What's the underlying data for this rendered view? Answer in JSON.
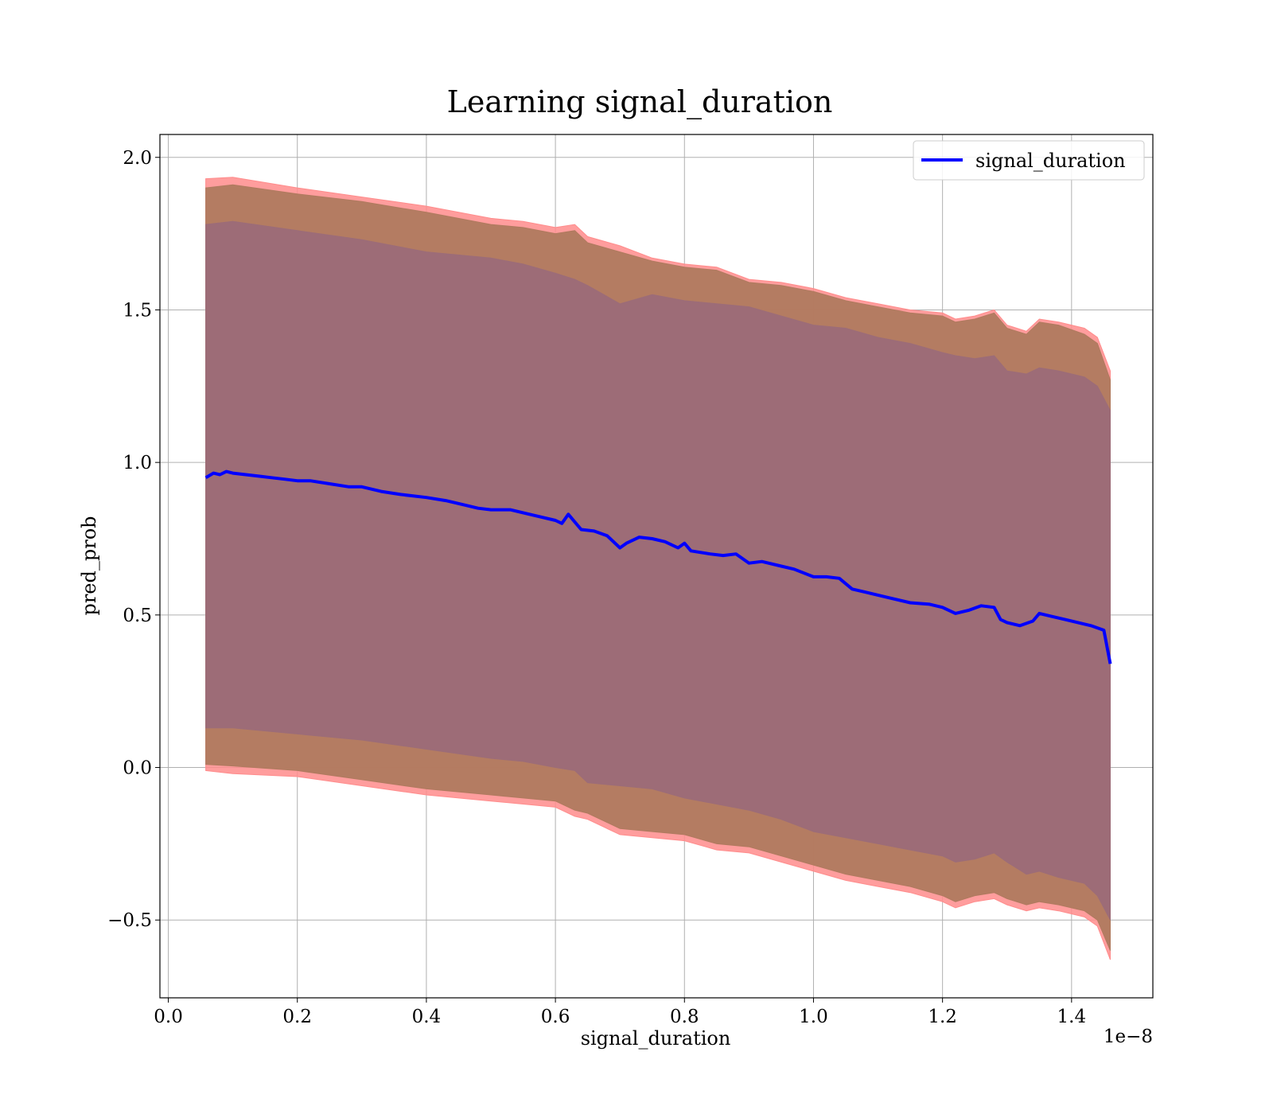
{
  "chart_data": {
    "type": "line",
    "title": "Learning signal_duration",
    "xlabel": "signal_duration",
    "ylabel": "pred_prob",
    "x_offset_label": "1e−8",
    "xlim": [
      -0.013,
      1.526
    ],
    "ylim": [
      -0.755,
      2.075
    ],
    "xticks": [
      0.0,
      0.2,
      0.4,
      0.6,
      0.8,
      1.0,
      1.2,
      1.4
    ],
    "xtick_labels": [
      "0.0",
      "0.2",
      "0.4",
      "0.6",
      "0.8",
      "1.0",
      "1.2",
      "1.4"
    ],
    "yticks": [
      -0.5,
      0.0,
      0.5,
      1.0,
      1.5,
      2.0
    ],
    "ytick_labels": [
      "−0.5",
      "0.0",
      "0.5",
      "1.0",
      "1.5",
      "2.0"
    ],
    "grid": true,
    "legend_position": "top-right",
    "colors": {
      "line": "#0000ff",
      "outer_band": "#ff8c8c",
      "middle_band": "#b07a5f",
      "inner_band": "#9c6c78"
    },
    "series": [
      {
        "name": "signal_duration",
        "kind": "line",
        "x": [
          0.058,
          0.07,
          0.08,
          0.09,
          0.1,
          0.12,
          0.14,
          0.16,
          0.18,
          0.2,
          0.22,
          0.25,
          0.28,
          0.3,
          0.33,
          0.36,
          0.4,
          0.43,
          0.46,
          0.48,
          0.5,
          0.53,
          0.55,
          0.58,
          0.6,
          0.61,
          0.62,
          0.63,
          0.64,
          0.66,
          0.68,
          0.7,
          0.71,
          0.73,
          0.75,
          0.77,
          0.79,
          0.8,
          0.81,
          0.84,
          0.86,
          0.88,
          0.9,
          0.92,
          0.95,
          0.97,
          1.0,
          1.02,
          1.04,
          1.06,
          1.08,
          1.1,
          1.12,
          1.15,
          1.18,
          1.2,
          1.22,
          1.24,
          1.26,
          1.28,
          1.29,
          1.3,
          1.32,
          1.34,
          1.35,
          1.37,
          1.39,
          1.41,
          1.43,
          1.45,
          1.46
        ],
        "y": [
          0.95,
          0.965,
          0.96,
          0.97,
          0.965,
          0.96,
          0.955,
          0.95,
          0.945,
          0.94,
          0.94,
          0.93,
          0.92,
          0.92,
          0.905,
          0.895,
          0.885,
          0.875,
          0.86,
          0.85,
          0.845,
          0.845,
          0.835,
          0.82,
          0.81,
          0.8,
          0.83,
          0.805,
          0.78,
          0.775,
          0.76,
          0.72,
          0.735,
          0.755,
          0.75,
          0.74,
          0.72,
          0.735,
          0.71,
          0.7,
          0.695,
          0.7,
          0.67,
          0.675,
          0.66,
          0.65,
          0.625,
          0.625,
          0.62,
          0.585,
          0.575,
          0.565,
          0.555,
          0.54,
          0.535,
          0.525,
          0.505,
          0.515,
          0.53,
          0.525,
          0.485,
          0.475,
          0.465,
          0.48,
          0.505,
          0.495,
          0.485,
          0.475,
          0.465,
          0.45,
          0.34
        ]
      },
      {
        "kind": "band",
        "x": [
          0.058,
          0.1,
          0.2,
          0.3,
          0.4,
          0.5,
          0.55,
          0.6,
          0.63,
          0.65,
          0.7,
          0.75,
          0.8,
          0.85,
          0.9,
          0.95,
          1.0,
          1.05,
          1.1,
          1.15,
          1.2,
          1.22,
          1.25,
          1.28,
          1.3,
          1.33,
          1.35,
          1.38,
          1.42,
          1.44,
          1.46
        ],
        "upper": [
          1.93,
          1.935,
          1.9,
          1.87,
          1.84,
          1.8,
          1.79,
          1.77,
          1.78,
          1.74,
          1.71,
          1.67,
          1.65,
          1.64,
          1.6,
          1.59,
          1.57,
          1.54,
          1.52,
          1.5,
          1.49,
          1.47,
          1.48,
          1.5,
          1.45,
          1.43,
          1.47,
          1.46,
          1.44,
          1.41,
          1.3
        ],
        "lower": [
          -0.01,
          -0.02,
          -0.03,
          -0.06,
          -0.09,
          -0.11,
          -0.12,
          -0.13,
          -0.16,
          -0.17,
          -0.22,
          -0.23,
          -0.24,
          -0.27,
          -0.28,
          -0.31,
          -0.34,
          -0.37,
          -0.39,
          -0.41,
          -0.44,
          -0.46,
          -0.44,
          -0.43,
          -0.45,
          -0.47,
          -0.46,
          -0.47,
          -0.49,
          -0.52,
          -0.63
        ]
      },
      {
        "kind": "band",
        "x": [
          0.058,
          0.1,
          0.2,
          0.3,
          0.4,
          0.5,
          0.55,
          0.6,
          0.63,
          0.65,
          0.7,
          0.75,
          0.8,
          0.85,
          0.9,
          0.95,
          1.0,
          1.05,
          1.1,
          1.15,
          1.2,
          1.22,
          1.25,
          1.28,
          1.3,
          1.33,
          1.35,
          1.38,
          1.42,
          1.44,
          1.46
        ],
        "upper": [
          1.9,
          1.91,
          1.88,
          1.855,
          1.82,
          1.78,
          1.77,
          1.75,
          1.76,
          1.72,
          1.69,
          1.66,
          1.64,
          1.63,
          1.59,
          1.58,
          1.56,
          1.53,
          1.51,
          1.49,
          1.48,
          1.46,
          1.47,
          1.49,
          1.44,
          1.42,
          1.46,
          1.45,
          1.42,
          1.39,
          1.27
        ],
        "lower": [
          0.01,
          0.005,
          -0.01,
          -0.04,
          -0.07,
          -0.09,
          -0.1,
          -0.11,
          -0.14,
          -0.15,
          -0.2,
          -0.21,
          -0.22,
          -0.25,
          -0.26,
          -0.29,
          -0.32,
          -0.35,
          -0.37,
          -0.39,
          -0.42,
          -0.44,
          -0.42,
          -0.41,
          -0.43,
          -0.45,
          -0.44,
          -0.45,
          -0.47,
          -0.5,
          -0.6
        ]
      },
      {
        "kind": "band",
        "x": [
          0.058,
          0.1,
          0.2,
          0.3,
          0.4,
          0.5,
          0.55,
          0.6,
          0.63,
          0.65,
          0.7,
          0.75,
          0.8,
          0.85,
          0.9,
          0.95,
          1.0,
          1.05,
          1.1,
          1.15,
          1.2,
          1.22,
          1.25,
          1.28,
          1.3,
          1.33,
          1.35,
          1.38,
          1.42,
          1.44,
          1.46
        ],
        "upper": [
          1.78,
          1.79,
          1.76,
          1.73,
          1.69,
          1.67,
          1.65,
          1.62,
          1.6,
          1.58,
          1.52,
          1.55,
          1.53,
          1.52,
          1.51,
          1.48,
          1.45,
          1.44,
          1.41,
          1.39,
          1.36,
          1.35,
          1.34,
          1.35,
          1.3,
          1.29,
          1.31,
          1.3,
          1.28,
          1.25,
          1.17
        ],
        "lower": [
          0.13,
          0.13,
          0.11,
          0.09,
          0.06,
          0.03,
          0.02,
          0.0,
          -0.01,
          -0.05,
          -0.06,
          -0.07,
          -0.1,
          -0.12,
          -0.14,
          -0.17,
          -0.21,
          -0.23,
          -0.25,
          -0.27,
          -0.29,
          -0.31,
          -0.3,
          -0.28,
          -0.31,
          -0.35,
          -0.34,
          -0.36,
          -0.38,
          -0.42,
          -0.5
        ]
      }
    ]
  }
}
